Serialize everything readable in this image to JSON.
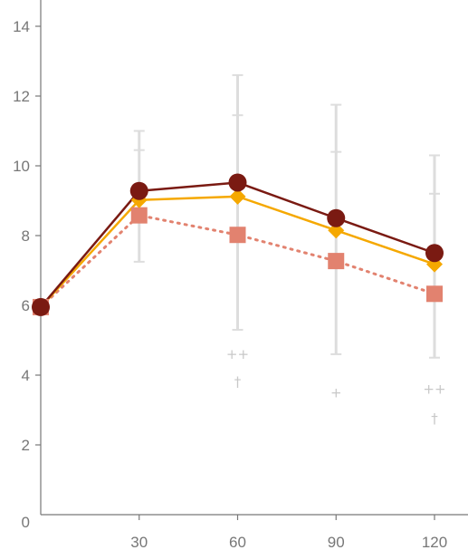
{
  "chart_data": {
    "type": "line",
    "title": "",
    "xlabel": "",
    "ylabel": "",
    "x": [
      0,
      30,
      60,
      90,
      120
    ],
    "xticks": [
      30,
      60,
      90,
      120
    ],
    "yticks": [
      2,
      4,
      6,
      8,
      10,
      12,
      14
    ],
    "origin_label": "0",
    "xlim": [
      0,
      130
    ],
    "ylim": [
      0,
      15
    ],
    "grid": false,
    "series": [
      {
        "color": "#7a1a12",
        "marker": "circle",
        "line": "solid",
        "values": [
          5.95,
          9.28,
          9.52,
          8.5,
          7.5
        ]
      },
      {
        "color": "#f5a800",
        "marker": "diamond",
        "line": "solid",
        "values": [
          5.95,
          9.02,
          9.12,
          8.15,
          7.18
        ]
      },
      {
        "color": "#e2826f",
        "marker": "square",
        "line": "dotted",
        "values": [
          5.95,
          8.58,
          8.02,
          7.27,
          6.33
        ]
      }
    ],
    "error_bars": [
      {
        "x": 30,
        "low": 7.25,
        "high": 11.0,
        "mid_cap": 10.45
      },
      {
        "x": 60,
        "low": 5.3,
        "high": 12.6,
        "mid_cap": 11.45
      },
      {
        "x": 90,
        "low": 4.6,
        "high": 11.75,
        "mid_cap": 10.4
      },
      {
        "x": 120,
        "low": 4.5,
        "high": 10.3,
        "mid_cap": 9.2
      }
    ],
    "annotations": [
      {
        "x": 60,
        "y": 4.6,
        "text": "++"
      },
      {
        "x": 60,
        "y": 3.8,
        "text": "†"
      },
      {
        "x": 90,
        "y": 3.5,
        "text": "+"
      },
      {
        "x": 120,
        "y": 3.6,
        "text": "++"
      },
      {
        "x": 120,
        "y": 2.75,
        "text": "†"
      }
    ],
    "colors": {
      "axis": "#777777",
      "error_bar": "#dddddd",
      "annotation": "#c8c8c8"
    }
  }
}
